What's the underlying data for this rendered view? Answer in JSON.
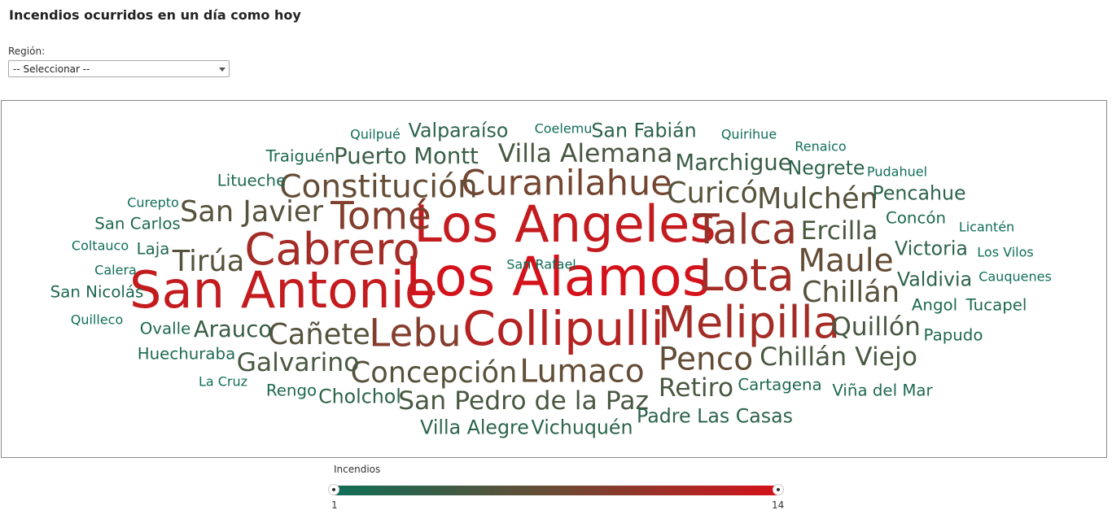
{
  "page": {
    "title": "Incendios ocurridos en un día como hoy"
  },
  "filter": {
    "label": "Región:",
    "selected": "-- Seleccionar --"
  },
  "legend": {
    "title": "Incendios",
    "min_label": "1",
    "max_label": "14",
    "min_color": "#0f6e57",
    "mid_color": "#6b4a33",
    "max_color": "#d4121b"
  },
  "chart_data": {
    "type": "wordcloud",
    "title": "",
    "value_name": "Incendios",
    "value_range": [
      1,
      14
    ],
    "words": [
      {
        "text": "Los Alamos",
        "value": 14
      },
      {
        "text": "San Antonio",
        "value": 13
      },
      {
        "text": "Los Angeles",
        "value": 13
      },
      {
        "text": "Collipulli",
        "value": 12
      },
      {
        "text": "Cabrero",
        "value": 11
      },
      {
        "text": "Lota",
        "value": 11
      },
      {
        "text": "Melipilla",
        "value": 11
      },
      {
        "text": "Talca",
        "value": 10
      },
      {
        "text": "Tomé",
        "value": 9
      },
      {
        "text": "Lebu",
        "value": 9
      },
      {
        "text": "Curanilahue",
        "value": 8
      },
      {
        "text": "Maule",
        "value": 7
      },
      {
        "text": "Lumaco",
        "value": 7
      },
      {
        "text": "Penco",
        "value": 7
      },
      {
        "text": "Constitución",
        "value": 7
      },
      {
        "text": "San Javier",
        "value": 6
      },
      {
        "text": "Curicó",
        "value": 6
      },
      {
        "text": "Mulchén",
        "value": 6
      },
      {
        "text": "Tirúa",
        "value": 6
      },
      {
        "text": "Concepción",
        "value": 6
      },
      {
        "text": "Chillán",
        "value": 6
      },
      {
        "text": "Cañete",
        "value": 6
      },
      {
        "text": "Villa Alemana",
        "value": 5
      },
      {
        "text": "Ercilla",
        "value": 5
      },
      {
        "text": "San Pedro de la Paz",
        "value": 5
      },
      {
        "text": "Galvarino",
        "value": 5
      },
      {
        "text": "Retiro",
        "value": 5
      },
      {
        "text": "Chillán Viejo",
        "value": 5
      },
      {
        "text": "Quillón",
        "value": 5
      },
      {
        "text": "Puerto Montt",
        "value": 4
      },
      {
        "text": "Marchigue",
        "value": 4
      },
      {
        "text": "Arauco",
        "value": 4
      },
      {
        "text": "Victoria",
        "value": 3
      },
      {
        "text": "Valdivia",
        "value": 3
      },
      {
        "text": "Padre Las Casas",
        "value": 3
      },
      {
        "text": "Villa Alegre",
        "value": 3
      },
      {
        "text": "Vichuquén",
        "value": 3
      },
      {
        "text": "Cholchol",
        "value": 3
      },
      {
        "text": "San Fabián",
        "value": 3
      },
      {
        "text": "Valparaíso",
        "value": 3
      },
      {
        "text": "Negrete",
        "value": 3
      },
      {
        "text": "Pencahue",
        "value": 3
      },
      {
        "text": "San Nicolás",
        "value": 2
      },
      {
        "text": "Traiguén",
        "value": 2
      },
      {
        "text": "Litueche",
        "value": 2
      },
      {
        "text": "San Carlos",
        "value": 2
      },
      {
        "text": "Laja",
        "value": 2
      },
      {
        "text": "Ovalle",
        "value": 2
      },
      {
        "text": "Huechuraba",
        "value": 2
      },
      {
        "text": "Rengo",
        "value": 2
      },
      {
        "text": "Cartagena",
        "value": 2
      },
      {
        "text": "Viña del Mar",
        "value": 2
      },
      {
        "text": "Concón",
        "value": 2
      },
      {
        "text": "Angol",
        "value": 2
      },
      {
        "text": "Tucapel",
        "value": 2
      },
      {
        "text": "Papudo",
        "value": 2
      },
      {
        "text": "Quilpué",
        "value": 1
      },
      {
        "text": "Coelemu",
        "value": 1
      },
      {
        "text": "Quirihue",
        "value": 1
      },
      {
        "text": "Renaico",
        "value": 1
      },
      {
        "text": "Pudahuel",
        "value": 1
      },
      {
        "text": "Curepto",
        "value": 1
      },
      {
        "text": "Coltauco",
        "value": 1
      },
      {
        "text": "Calera",
        "value": 1
      },
      {
        "text": "Quilleco",
        "value": 1
      },
      {
        "text": "La Cruz",
        "value": 1
      },
      {
        "text": "Licantén",
        "value": 1
      },
      {
        "text": "Los Vilos",
        "value": 1
      },
      {
        "text": "Cauquenes",
        "value": 1
      },
      {
        "text": "San Rafael",
        "value": 1
      }
    ]
  }
}
